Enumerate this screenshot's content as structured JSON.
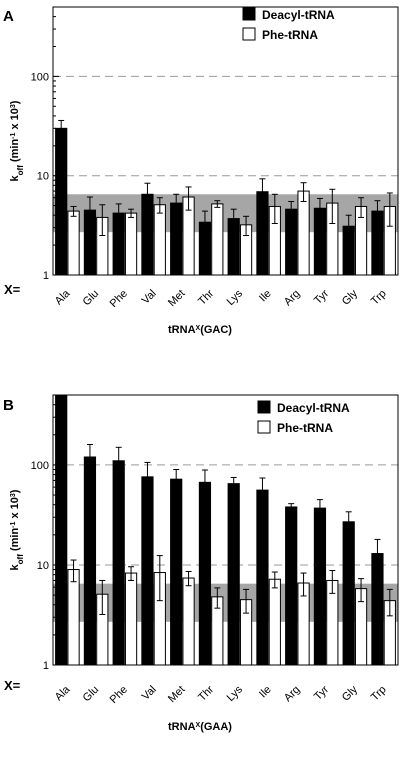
{
  "chart_data": [
    {
      "type": "bar",
      "panel": "A",
      "categories_prefix": "X=",
      "categories": [
        "Ala",
        "Glu",
        "Phe",
        "Val",
        "Met",
        "Thr",
        "Lys",
        "Ile",
        "Arg",
        "Tyr",
        "Gly",
        "Trp"
      ],
      "xlabel": "tRNAX(GAC)",
      "ylabel": "koff (min-1 x 103)",
      "yscale": "log",
      "ylim": [
        1,
        500
      ],
      "yticks": [
        "1",
        "10",
        "100"
      ],
      "gridlines": [
        10,
        100
      ],
      "shaded_band": [
        2.7,
        6.5
      ],
      "legend_position": "top-right",
      "series": [
        {
          "name": "Deacyl-tRNA",
          "color": "#000000",
          "values": [
            30,
            4.5,
            4.2,
            6.5,
            5.3,
            3.4,
            3.7,
            6.9,
            4.6,
            4.7,
            3.1,
            4.4
          ],
          "errors": [
            6,
            1.6,
            1.0,
            1.9,
            1.2,
            1.0,
            0.9,
            2.4,
            0.9,
            1.2,
            0.9,
            1.2
          ]
        },
        {
          "name": "Phe-tRNA",
          "color": "#ffffff",
          "values": [
            4.4,
            3.8,
            4.2,
            5.1,
            6.1,
            5.2,
            3.2,
            4.9,
            7.0,
            5.3,
            4.9,
            4.9
          ],
          "errors": [
            0.5,
            1.3,
            0.4,
            0.9,
            1.6,
            0.4,
            0.7,
            1.6,
            1.5,
            2.0,
            1.1,
            1.8
          ]
        }
      ]
    },
    {
      "type": "bar",
      "panel": "B",
      "categories_prefix": "X=",
      "categories": [
        "Ala",
        "Glu",
        "Phe",
        "Val",
        "Met",
        "Thr",
        "Lys",
        "Ile",
        "Arg",
        "Tyr",
        "Gly",
        "Trp"
      ],
      "xlabel": "tRNAX(GAA)",
      "ylabel": "koff (min-1 x 103)",
      "yscale": "log",
      "ylim": [
        1,
        500
      ],
      "yticks": [
        "1",
        "10",
        "100"
      ],
      "gridlines": [
        10,
        100
      ],
      "shaded_band": [
        2.7,
        6.5
      ],
      "legend_position": "top-right",
      "series": [
        {
          "name": "Deacyl-tRNA",
          "color": "#000000",
          "values": [
            500,
            120,
            110,
            76,
            72,
            67,
            65,
            56,
            38,
            37,
            27,
            13
          ],
          "errors": [
            0,
            40,
            40,
            30,
            18,
            22,
            10,
            18,
            3,
            8,
            7,
            5
          ]
        },
        {
          "name": "Phe-tRNA",
          "color": "#ffffff",
          "values": [
            9.0,
            5.1,
            8.3,
            8.4,
            7.4,
            4.8,
            4.5,
            7.2,
            6.6,
            7.0,
            5.8,
            4.4
          ],
          "errors": [
            2.2,
            1.9,
            1.3,
            4.0,
            1.2,
            1.1,
            1.2,
            1.3,
            1.7,
            1.8,
            1.5,
            1.3
          ]
        }
      ]
    }
  ]
}
